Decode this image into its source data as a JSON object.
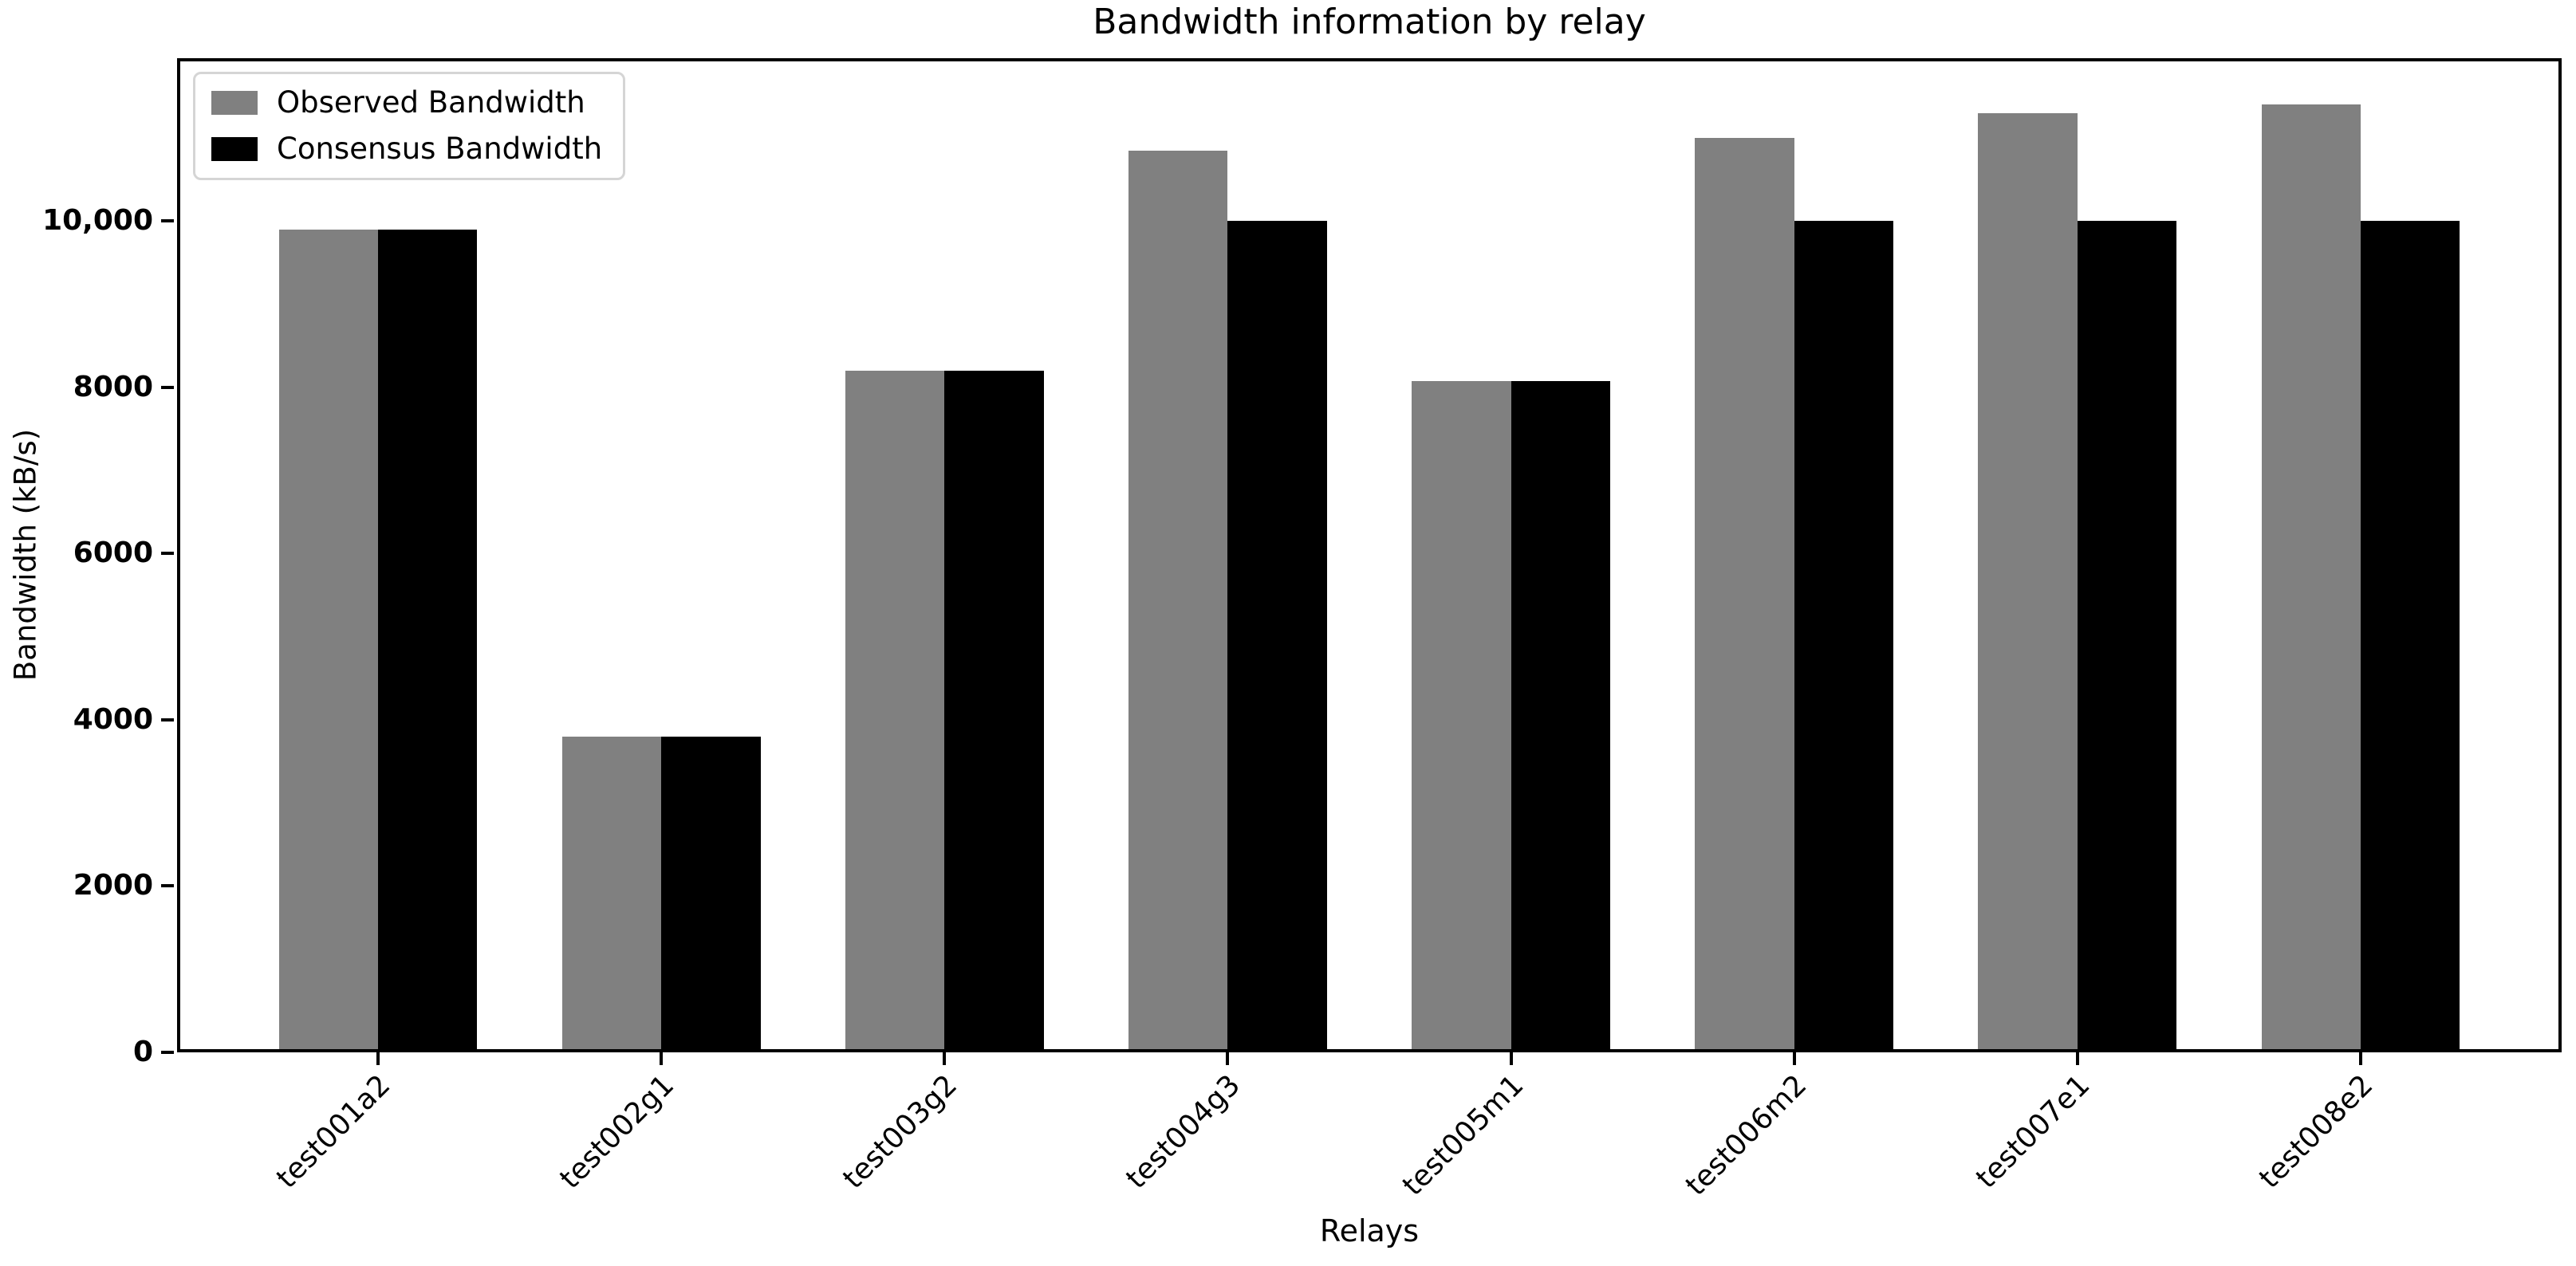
{
  "chart_data": {
    "type": "bar",
    "title": "Bandwidth information by relay",
    "xlabel": "Relays",
    "ylabel": "Bandwidth (kB/s)",
    "categories": [
      "test001a2",
      "test002g1",
      "test003g2",
      "test004g3",
      "test005m1",
      "test006m2",
      "test007e1",
      "test008e2"
    ],
    "series": [
      {
        "name": "Observed Bandwidth",
        "color": "#808080",
        "values": [
          9900,
          3800,
          8200,
          10850,
          8080,
          11000,
          11300,
          11400
        ]
      },
      {
        "name": "Consensus Bandwidth",
        "color": "#000000",
        "values": [
          9900,
          3800,
          8200,
          10000,
          8080,
          10000,
          10000,
          10000
        ]
      }
    ],
    "ylim": [
      0,
      11960
    ],
    "yticks": {
      "values": [
        0,
        2000,
        4000,
        6000,
        8000,
        10000
      ],
      "labels": [
        "0",
        "2000",
        "4000",
        "6000",
        "8000",
        "10,000"
      ]
    },
    "grid": false,
    "legend_position": "upper left",
    "x_tick_rotation_deg": 45,
    "background_color": "#ffffff",
    "text_color": "#000000"
  }
}
